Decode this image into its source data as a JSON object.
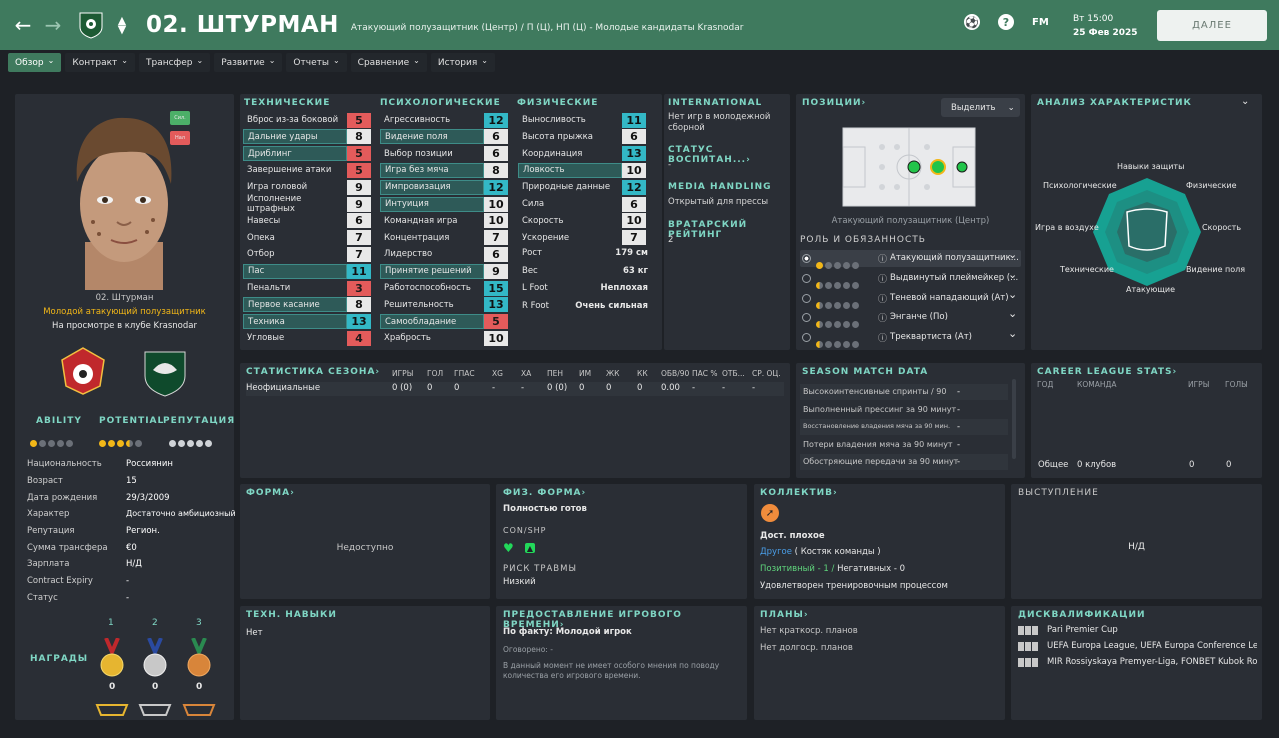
{
  "header": {
    "back": "←",
    "fwd": "→",
    "updown": "⌃⌄",
    "number_name": "02.  ШТУРМАН",
    "subtitle": "Атакующий полузащитник (Центр) / П (Ц), НП (Ц) - Молодые кандидаты Krasnodar",
    "fm": "FM",
    "help": "?",
    "time": "Вт 15:00",
    "date": "25 Фев 2025",
    "next": "ДАЛЕЕ"
  },
  "tabs": [
    "Обзор",
    "Контракт",
    "Трансфер",
    "Развитие",
    "Отчеты",
    "Сравнение",
    "История"
  ],
  "profile": {
    "tag1": "Сил.",
    "tag2": "Нал",
    "name": "02. Штурман",
    "role": "Молодой атакующий полузащитник",
    "status": "На просмотре в клубе Krasnodar",
    "ability": "ABILITY",
    "potential": "POTENTIAL",
    "reputation": "РЕПУТАЦИЯ"
  },
  "details": [
    {
      "k": "Национальность",
      "v": "Россиянин"
    },
    {
      "k": "Возраст",
      "v": "15"
    },
    {
      "k": "Дата рождения",
      "v": "29/3/2009"
    },
    {
      "k": "Характер",
      "v": "Достаточно амбициозный"
    },
    {
      "k": "Репутация",
      "v": "Регион."
    },
    {
      "k": "Сумма трансфера",
      "v": "€0"
    },
    {
      "k": "Зарплата",
      "v": "Н/Д"
    },
    {
      "k": "Contract Expiry",
      "v": "-"
    },
    {
      "k": "Статус",
      "v": "-"
    }
  ],
  "awards": {
    "label": "НАГРАДЫ",
    "places": [
      "1",
      "2",
      "3"
    ],
    "counts": [
      "0",
      "0",
      "0"
    ]
  },
  "attributes": {
    "tech_title": "ТЕХНИЧЕСКИЕ",
    "psy_title": "ПСИХОЛОГИЧЕСКИЕ",
    "phys_title": "ФИЗИЧЕСКИЕ",
    "tech": [
      {
        "n": "Вброс из-за боковой",
        "v": "5",
        "c": "red",
        "h": 0
      },
      {
        "n": "Дальние удары",
        "v": "8",
        "c": "white",
        "h": 1
      },
      {
        "n": "Дриблинг",
        "v": "5",
        "c": "red",
        "h": 1
      },
      {
        "n": "Завершение атаки",
        "v": "5",
        "c": "red",
        "h": 0
      },
      {
        "n": "Игра головой",
        "v": "9",
        "c": "white",
        "h": 0
      },
      {
        "n": "Исполнение штрафных",
        "v": "9",
        "c": "white",
        "h": 0
      },
      {
        "n": "Навесы",
        "v": "6",
        "c": "white",
        "h": 0
      },
      {
        "n": "Опека",
        "v": "7",
        "c": "white",
        "h": 0
      },
      {
        "n": "Отбор",
        "v": "7",
        "c": "white",
        "h": 0
      },
      {
        "n": "Пас",
        "v": "11",
        "c": "cyan",
        "h": 1
      },
      {
        "n": "Пенальти",
        "v": "3",
        "c": "red",
        "h": 0
      },
      {
        "n": "Первое касание",
        "v": "8",
        "c": "white",
        "h": 1
      },
      {
        "n": "Техника",
        "v": "13",
        "c": "cyan",
        "h": 1
      },
      {
        "n": "Угловые",
        "v": "4",
        "c": "red",
        "h": 0
      }
    ],
    "psy": [
      {
        "n": "Агрессивность",
        "v": "12",
        "c": "cyan",
        "h": 0
      },
      {
        "n": "Видение поля",
        "v": "6",
        "c": "white",
        "h": 1
      },
      {
        "n": "Выбор позиции",
        "v": "6",
        "c": "white",
        "h": 0
      },
      {
        "n": "Игра без мяча",
        "v": "8",
        "c": "white",
        "h": 1
      },
      {
        "n": "Импровизация",
        "v": "12",
        "c": "cyan",
        "h": 1
      },
      {
        "n": "Интуиция",
        "v": "10",
        "c": "white",
        "h": 1
      },
      {
        "n": "Командная игра",
        "v": "10",
        "c": "white",
        "h": 0
      },
      {
        "n": "Концентрация",
        "v": "7",
        "c": "white",
        "h": 0
      },
      {
        "n": "Лидерство",
        "v": "6",
        "c": "white",
        "h": 0
      },
      {
        "n": "Принятие решений",
        "v": "9",
        "c": "white",
        "h": 1
      },
      {
        "n": "Работоспособность",
        "v": "15",
        "c": "cyan",
        "h": 0
      },
      {
        "n": "Решительность",
        "v": "13",
        "c": "cyan",
        "h": 0
      },
      {
        "n": "Самообладание",
        "v": "5",
        "c": "red",
        "h": 1
      },
      {
        "n": "Храбрость",
        "v": "10",
        "c": "white",
        "h": 0
      }
    ],
    "phys": [
      {
        "n": "Выносливость",
        "v": "11",
        "c": "cyan",
        "h": 0
      },
      {
        "n": "Высота прыжка",
        "v": "6",
        "c": "white",
        "h": 0
      },
      {
        "n": "Координация",
        "v": "13",
        "c": "cyan",
        "h": 0
      },
      {
        "n": "Ловкость",
        "v": "10",
        "c": "white",
        "h": 1
      },
      {
        "n": "Природные данные",
        "v": "12",
        "c": "cyan",
        "h": 0
      },
      {
        "n": "Сила",
        "v": "6",
        "c": "white",
        "h": 0
      },
      {
        "n": "Скорость",
        "v": "10",
        "c": "white",
        "h": 0
      },
      {
        "n": "Ускорение",
        "v": "7",
        "c": "white",
        "h": 0
      }
    ],
    "bio": [
      {
        "n": "Рост",
        "v": "179 см"
      },
      {
        "n": "Вес",
        "v": "63 кг"
      },
      {
        "n": "L Foot",
        "v": "Неплохая"
      },
      {
        "n": "R Foot",
        "v": "Очень сильная"
      }
    ]
  },
  "info": {
    "intl_title": "INTERNATIONAL",
    "intl_text": "Нет игр в молодежной сборной",
    "edu_title": "СТАТУС ВОСПИТАН...",
    "edu_text": "-",
    "media_title": "MEDIA HANDLING",
    "media_text": "Открытый для прессы",
    "gk_title": "ВРАТАРСКИЙ РЕЙТИНГ",
    "gk_text": "2"
  },
  "positions": {
    "title": "ПОЗИЦИИ",
    "select": "Выделить",
    "caption": "Атакующий полузащитник (Центр)",
    "roles_title": "РОЛЬ И ОБЯЗАННОСТЬ",
    "roles": [
      "Атакующий полузащитник...",
      "Выдвинутый плеймейкер (...",
      "Теневой нападающий (Ат)",
      "Энганче (По)",
      "Треквартиста (Ат)"
    ]
  },
  "radar": {
    "title": "АНАЛИЗ ХАРАКТЕРИСТИК",
    "labels": [
      "Навыки защиты",
      "Физические",
      "Скорость",
      "Видение поля",
      "Атакующие",
      "Технические",
      "Игра в воздухе",
      "Психологические"
    ]
  },
  "season": {
    "title": "СТАТИСТИКА СЕЗОНА",
    "cols": [
      "ИГРЫ",
      "ГОЛ",
      "ГПАС",
      "ХG",
      "ХА",
      "ПЕН",
      "ИМ",
      "ЖК",
      "КК",
      "ОБВ/90",
      "ПАС %",
      "ОТБ...",
      "СР. ОЦ."
    ],
    "row_label": "Неофициальные",
    "row": [
      "0 (0)",
      "0",
      "0",
      "-",
      "-",
      "0 (0)",
      "0",
      "0",
      "0",
      "0.00",
      "-",
      "-",
      "-"
    ]
  },
  "match": {
    "title": "SEASON MATCH DATA",
    "rows": [
      {
        "n": "Высокоинтенсивные спринты / 90",
        "v": "-"
      },
      {
        "n": "Выполненный прессинг за 90 минут",
        "v": "-"
      },
      {
        "n": "Восстановление владения мяча за 90 мин.",
        "v": "-"
      },
      {
        "n": "Потери владения мяча за 90 минут",
        "v": "-"
      },
      {
        "n": "Обостряющие передачи за 90 минут",
        "v": "-"
      }
    ]
  },
  "career": {
    "title": "CAREER LEAGUE STATS",
    "cols": [
      "ГОД",
      "КОМАНДА",
      "ИГРЫ",
      "ГОЛЫ"
    ],
    "total_label": "Общее",
    "total_team": "0 клубов",
    "total_games": "0",
    "total_goals": "0"
  },
  "forma": {
    "title": "ФОРМА",
    "text": "Недоступно"
  },
  "fiz": {
    "title": "ФИЗ. ФОРМА",
    "status": "Полностью готов",
    "con_title": "CON/SHP",
    "risk_title": "РИСК ТРАВМЫ",
    "risk": "Низкий"
  },
  "kollektiv": {
    "title": "КОЛЛЕКТИВ",
    "level": "Дост. плохое",
    "group_link": "Другое",
    "group_rest": "( Костяк команды )",
    "pos": "Позитивный - 1 /",
    "neg": "Негативных - 0",
    "train": "Удовлетворен тренировочным процессом"
  },
  "vyst": {
    "title": "ВЫСТУПЛЕНИЕ",
    "text": "Н/Д"
  },
  "tech_skills": {
    "title": "ТЕХН. НАВЫКИ",
    "text": "Нет"
  },
  "playtime": {
    "title": "ПРЕДОСТАВЛЕНИЕ ИГРОВОГО ВРЕМЕНИ",
    "fact_label": "По факту:",
    "fact": "Молодой игрок",
    "agreed": "Оговорено: -",
    "note": "В данный момент не имеет особого мнения по поводу количества его игрового времени."
  },
  "plans": {
    "title": "ПЛАНЫ",
    "short": "Нет краткоср. планов",
    "long": "Нет долгоср. планов"
  },
  "disq": {
    "title": "ДИСКВАЛИФИКАЦИИ",
    "rows": [
      "Pari Premier Cup",
      "UEFA Europa League, UEFA Europa Conference Le...",
      "MIR Rossiyskaya Premyer-Liga, FONBET Kubok Rossii"
    ]
  }
}
